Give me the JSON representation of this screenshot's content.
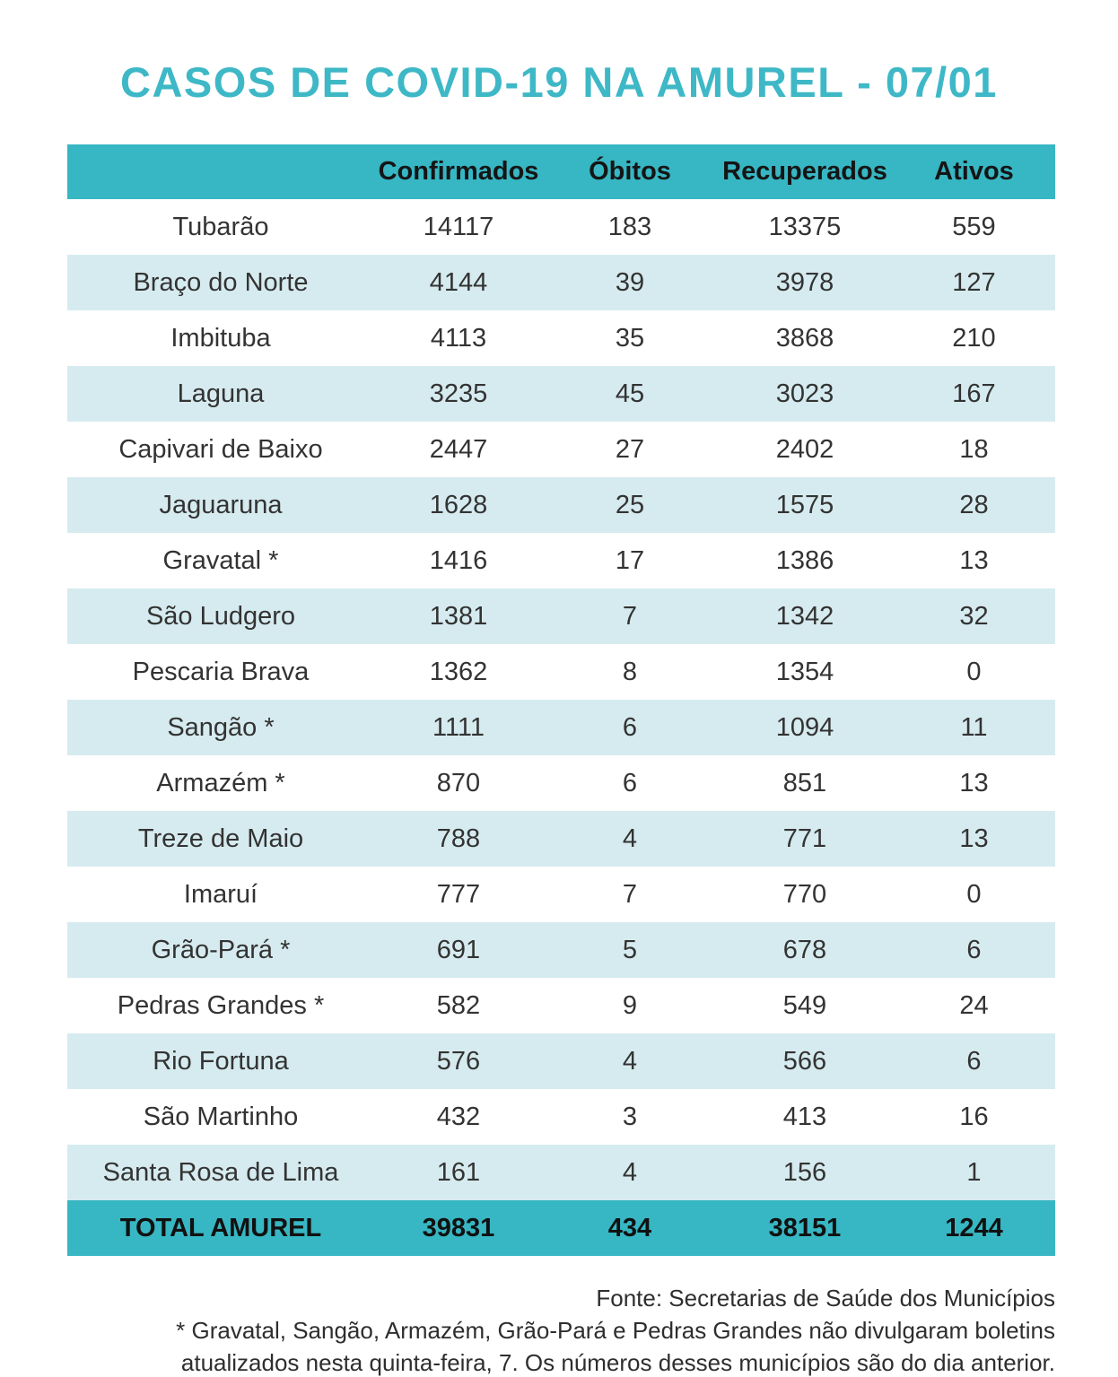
{
  "title": "CASOS DE COVID-19 NA AMUREL - 07/01",
  "colors": {
    "teal": "#37B6C3",
    "title_teal": "#3EB8C6",
    "light_row": "#D6EBEF"
  },
  "chart_data": {
    "type": "table",
    "title": "CASOS DE COVID-19 NA AMUREL - 07/01",
    "columns": [
      "Confirmados",
      "Óbitos",
      "Recuperados",
      "Ativos"
    ],
    "rows": [
      {
        "name": "Tubarão",
        "values": [
          14117,
          183,
          13375,
          559
        ]
      },
      {
        "name": "Braço do Norte",
        "values": [
          4144,
          39,
          3978,
          127
        ]
      },
      {
        "name": "Imbituba",
        "values": [
          4113,
          35,
          3868,
          210
        ]
      },
      {
        "name": "Laguna",
        "values": [
          3235,
          45,
          3023,
          167
        ]
      },
      {
        "name": "Capivari de Baixo",
        "values": [
          2447,
          27,
          2402,
          18
        ]
      },
      {
        "name": "Jaguaruna",
        "values": [
          1628,
          25,
          1575,
          28
        ]
      },
      {
        "name": "Gravatal *",
        "values": [
          1416,
          17,
          1386,
          13
        ]
      },
      {
        "name": "São Ludgero",
        "values": [
          1381,
          7,
          1342,
          32
        ]
      },
      {
        "name": "Pescaria Brava",
        "values": [
          1362,
          8,
          1354,
          0
        ]
      },
      {
        "name": "Sangão *",
        "values": [
          1111,
          6,
          1094,
          11
        ]
      },
      {
        "name": "Armazém *",
        "values": [
          870,
          6,
          851,
          13
        ]
      },
      {
        "name": "Treze de Maio",
        "values": [
          788,
          4,
          771,
          13
        ]
      },
      {
        "name": "Imaruí",
        "values": [
          777,
          7,
          770,
          0
        ]
      },
      {
        "name": "Grão-Pará *",
        "values": [
          691,
          5,
          678,
          6
        ]
      },
      {
        "name": "Pedras Grandes *",
        "values": [
          582,
          9,
          549,
          24
        ]
      },
      {
        "name": "Rio Fortuna",
        "values": [
          576,
          4,
          566,
          6
        ]
      },
      {
        "name": "São Martinho",
        "values": [
          432,
          3,
          413,
          16
        ]
      },
      {
        "name": "Santa Rosa de Lima",
        "values": [
          161,
          4,
          156,
          1
        ]
      }
    ],
    "total": {
      "name": "TOTAL AMUREL",
      "values": [
        39831,
        434,
        38151,
        1244
      ]
    }
  },
  "footer": {
    "source": "Fonte: Secretarias de Saúde dos Municípios",
    "note_line1": "* Gravatal, Sangão, Armazém, Grão-Pará e Pedras Grandes não divulgaram boletins",
    "note_line2": "atualizados nesta quinta-feira, 7. Os números desses municípios são do dia anterior."
  }
}
